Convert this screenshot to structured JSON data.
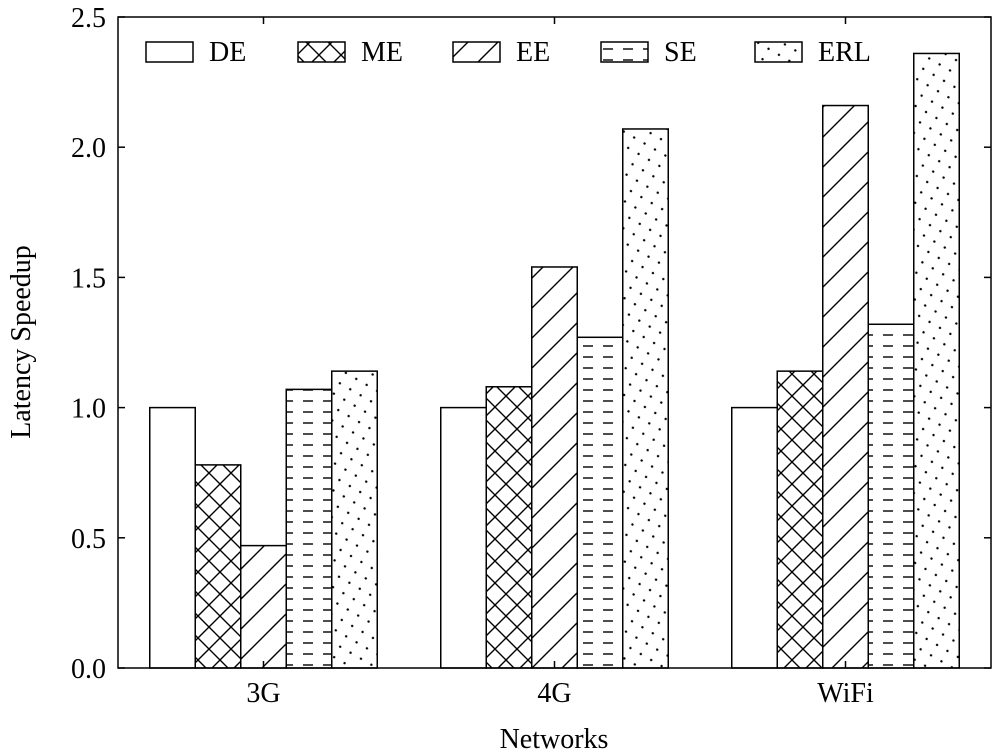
{
  "chart_data": {
    "type": "bar",
    "title": "",
    "xlabel": "Networks",
    "ylabel": "Latency Speedup",
    "categories": [
      "3G",
      "4G",
      "WiFi"
    ],
    "ylim": [
      0,
      2.5
    ],
    "yticks": [
      0.0,
      0.5,
      1.0,
      1.5,
      2.0,
      2.5
    ],
    "ytick_labels": [
      "0.0",
      "0.5",
      "1.0",
      "1.5",
      "2.0",
      "2.5"
    ],
    "grid": false,
    "legend_position": "top",
    "series": [
      {
        "name": "DE",
        "pattern": "none",
        "values": [
          1.0,
          1.0,
          1.0
        ]
      },
      {
        "name": "ME",
        "pattern": "crosshatch",
        "values": [
          0.78,
          1.08,
          1.14
        ]
      },
      {
        "name": "EE",
        "pattern": "diagonal",
        "values": [
          0.47,
          1.54,
          2.16
        ]
      },
      {
        "name": "SE",
        "pattern": "dashes",
        "values": [
          1.07,
          1.27,
          1.32
        ]
      },
      {
        "name": "ERL",
        "pattern": "dots",
        "values": [
          1.14,
          2.07,
          2.36
        ]
      }
    ]
  }
}
